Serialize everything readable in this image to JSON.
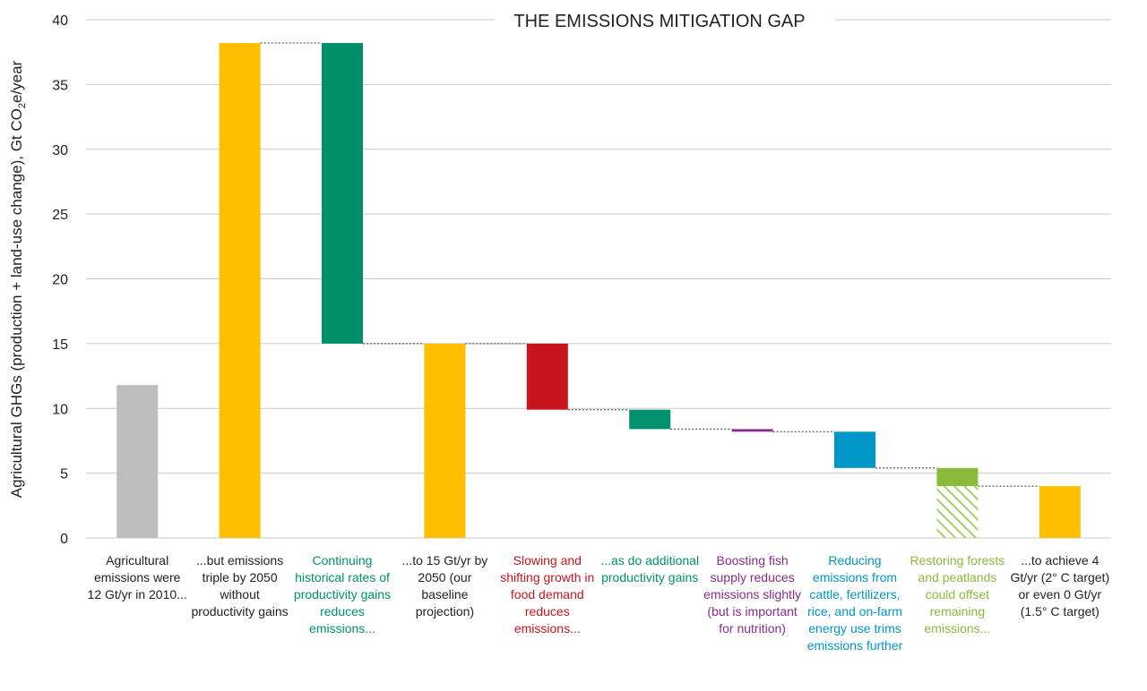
{
  "chart_data": {
    "type": "waterfall",
    "title": "THE EMISSIONS MITIGATION GAP",
    "y_label": "Agricultural GHGs (production + land-use change), Gt CO",
    "y_label_sub": "2",
    "y_label_end": "e/year",
    "categories": [
      "Agricultural emissions were 12 Gt/yr in 2010...",
      "...but emissions triple by 2050 without productivity gains",
      "Continuing historical rates of productivity gains reduces emissions...",
      "...to 15 Gt/yr by 2050 (our baseline projection)",
      "Slowing and shifting growth in food demand reduces emissions...",
      "...as do additional productivity gains",
      "Boosting fish supply reduces emissions slightly (but is important for nutrition)",
      "Reducing emissions from cattle, fertilizers, rice, and on-farm energy use trims emissions further",
      "Restoring forests and peatlands could offset remaining emissions...",
      "...to achieve 4 Gt/yr (2° C target) or even 0 Gt/yr (1.5° C target)"
    ],
    "measure": [
      "absolute",
      "absolute",
      "relative",
      "absolute",
      "relative",
      "relative",
      "relative",
      "relative",
      "relative",
      "absolute"
    ],
    "values": [
      11.8,
      38.2,
      -23.2,
      15,
      -5.1,
      -1.5,
      -0.2,
      -2.8,
      -1.4,
      4
    ],
    "offset_values": [
      null,
      null,
      null,
      null,
      null,
      null,
      null,
      null,
      -4,
      null
    ],
    "offset_color": "#a9cc6a",
    "colors": [
      "#bdbdbd",
      "#fdbf00",
      "#008f68",
      "#fdbf00",
      "#c8151d",
      "#00916e",
      "#8b2a8f",
      "#0096c8",
      "#8cba3c",
      "#fdbf00"
    ],
    "label_colors": [
      "#222222",
      "#222222",
      "#00916e",
      "#222222",
      "#c8151d",
      "#00916e",
      "#8b2a8f",
      "#0096c8",
      "#8cba3c",
      "#222222"
    ],
    "ylim": [
      0,
      40
    ],
    "yticks": [
      0,
      5,
      10,
      15,
      20,
      25,
      30,
      35,
      40
    ],
    "grid": true
  }
}
